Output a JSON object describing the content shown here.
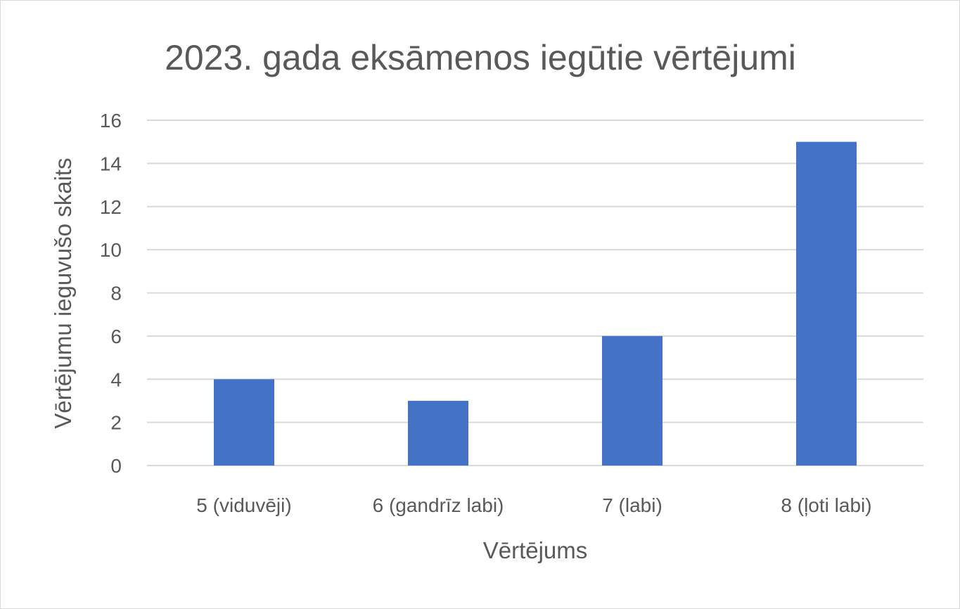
{
  "chart_data": {
    "type": "bar",
    "title": "2023. gada eksāmenos iegūtie vērtējumi",
    "xlabel": "Vērtējums",
    "ylabel": "Vērtējumu ieguvušo skaits",
    "categories": [
      "5 (viduvēji)",
      "6 (gandrīz labi)",
      "7 (labi)",
      "8 (ļoti labi)"
    ],
    "series": [
      {
        "values": [
          4,
          3,
          6,
          15
        ],
        "color": "#4472c4"
      }
    ],
    "ylim": [
      0,
      16
    ],
    "yticks": [
      0,
      2,
      4,
      6,
      8,
      10,
      12,
      14,
      16
    ],
    "grid": true,
    "legend": "none"
  }
}
